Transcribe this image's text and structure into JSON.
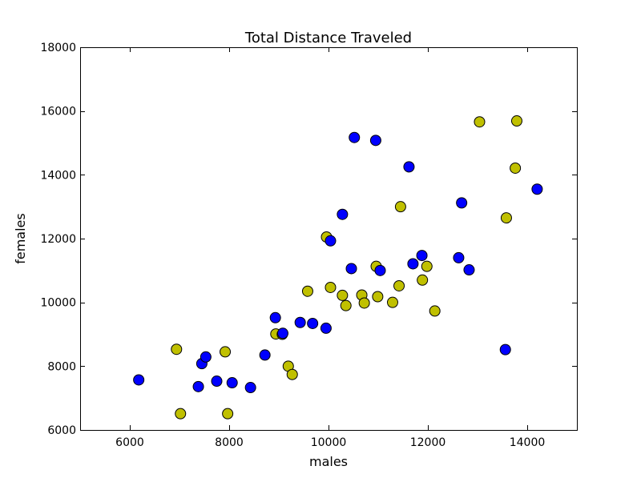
{
  "chart_data": {
    "type": "scatter",
    "title": "Total Distance Traveled",
    "xlabel": "males",
    "ylabel": "females",
    "xlim": [
      5000,
      15000
    ],
    "ylim": [
      6000,
      18000
    ],
    "xticks": [
      6000,
      8000,
      10000,
      12000,
      14000
    ],
    "yticks": [
      6000,
      8000,
      10000,
      12000,
      14000,
      16000,
      18000
    ],
    "grid": false,
    "legend": "none",
    "series": [
      {
        "color": "#0000ff",
        "points": [
          [
            6180,
            7570
          ],
          [
            7380,
            7360
          ],
          [
            7450,
            8080
          ],
          [
            7530,
            8290
          ],
          [
            7750,
            7530
          ],
          [
            8060,
            7480
          ],
          [
            8430,
            7330
          ],
          [
            8720,
            8350
          ],
          [
            8930,
            9520
          ],
          [
            9080,
            9030
          ],
          [
            9430,
            9370
          ],
          [
            9680,
            9340
          ],
          [
            9950,
            9190
          ],
          [
            10040,
            11930
          ],
          [
            10280,
            12760
          ],
          [
            10460,
            11060
          ],
          [
            10520,
            15170
          ],
          [
            10950,
            15080
          ],
          [
            11040,
            11000
          ],
          [
            11620,
            14250
          ],
          [
            11700,
            11210
          ],
          [
            11880,
            11470
          ],
          [
            12620,
            11400
          ],
          [
            12680,
            13120
          ],
          [
            12830,
            11020
          ],
          [
            13560,
            8520
          ],
          [
            14200,
            13550
          ]
        ]
      },
      {
        "color": "#c0c000",
        "points": [
          [
            6940,
            8530
          ],
          [
            7020,
            6510
          ],
          [
            7920,
            8450
          ],
          [
            7970,
            6510
          ],
          [
            8940,
            9010
          ],
          [
            9070,
            9000
          ],
          [
            9190,
            8000
          ],
          [
            9270,
            7740
          ],
          [
            9580,
            10350
          ],
          [
            9960,
            12050
          ],
          [
            10040,
            10470
          ],
          [
            10280,
            10220
          ],
          [
            10350,
            9900
          ],
          [
            10670,
            10230
          ],
          [
            10720,
            9980
          ],
          [
            10960,
            11130
          ],
          [
            10990,
            10180
          ],
          [
            11290,
            10000
          ],
          [
            11420,
            10520
          ],
          [
            11450,
            13000
          ],
          [
            11890,
            10700
          ],
          [
            11980,
            11130
          ],
          [
            12140,
            9730
          ],
          [
            13040,
            15660
          ],
          [
            13580,
            12650
          ],
          [
            13760,
            14210
          ],
          [
            13790,
            15690
          ]
        ]
      }
    ]
  }
}
